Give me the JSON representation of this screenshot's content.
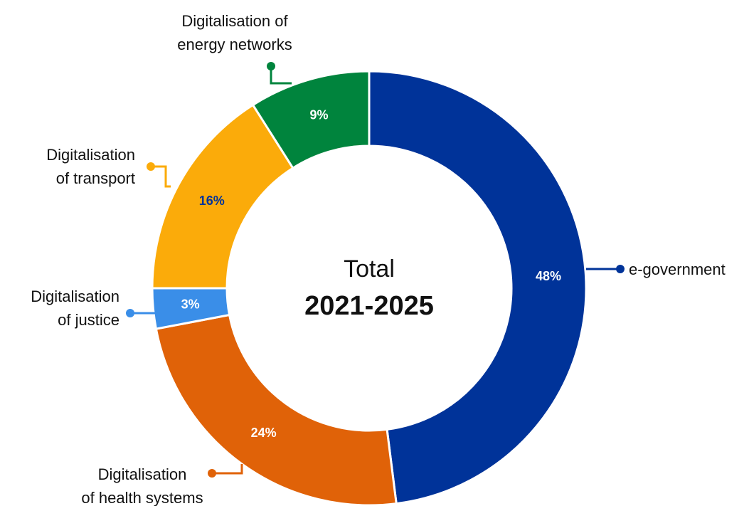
{
  "chart_data": {
    "type": "donut",
    "center_text": [
      "Total",
      "2021-2025"
    ],
    "categories": [
      "e-government",
      "Digitalisation\nof health systems",
      "Digitalisation\nof justice",
      "Digitalisation\nof transport",
      "Digitalisation of\nenergy networks"
    ],
    "values": [
      48,
      24,
      3,
      16,
      9
    ],
    "value_labels": [
      "48%",
      "24%",
      "3%",
      "16%",
      "9%"
    ],
    "colors": [
      "#003399",
      "#e06208",
      "#3a8ee8",
      "#fbab0a",
      "#00843d"
    ],
    "value_label_colors": [
      "#ffffff",
      "#ffffff",
      "#ffffff",
      "#003399",
      "#ffffff"
    ]
  }
}
